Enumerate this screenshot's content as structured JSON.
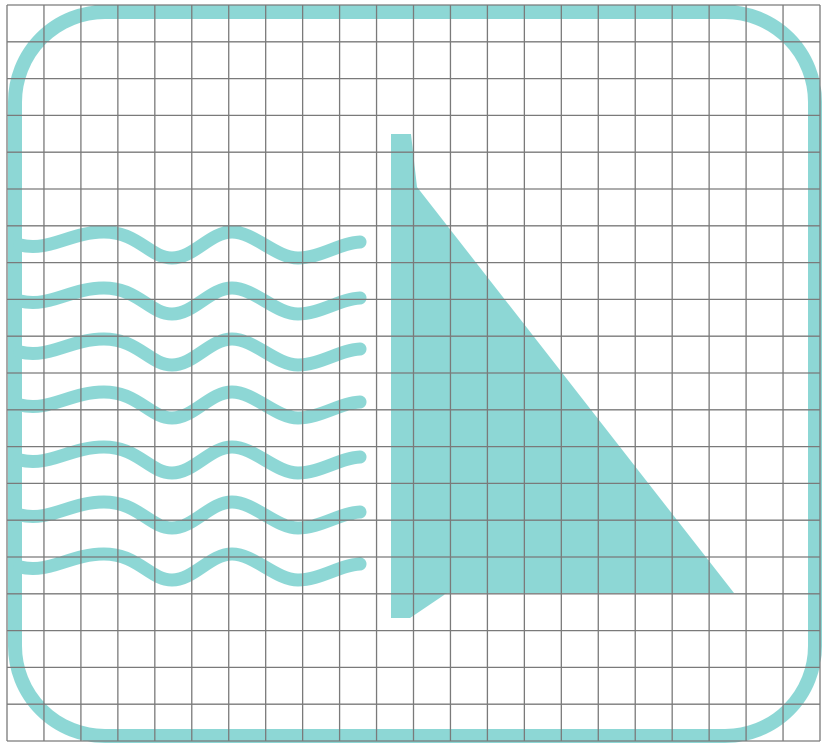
{
  "icon": {
    "name": "dam-reservoir-icon",
    "color": "#8dd7d5",
    "grid_color": "#7a7a7a",
    "grid_columns": 22,
    "grid_rows": 20,
    "wave_rows": 7,
    "waves_per_row": 3
  }
}
